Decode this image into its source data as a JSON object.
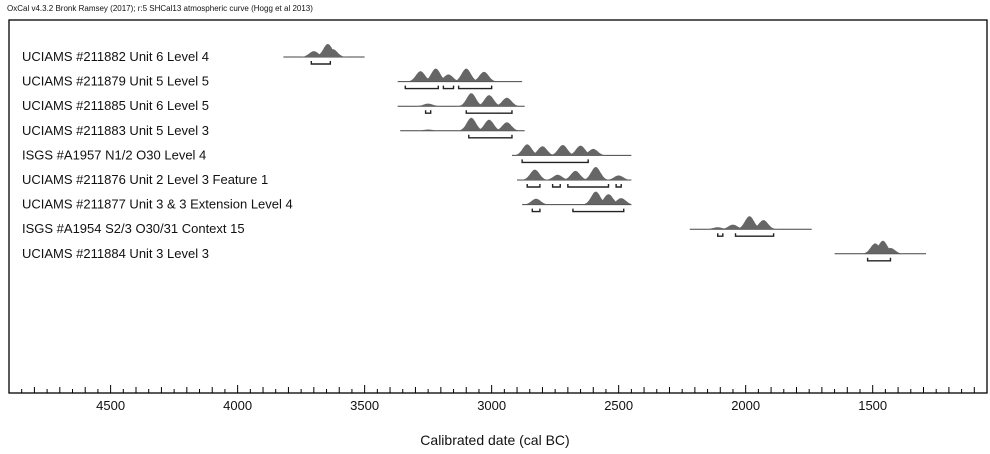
{
  "header": "OxCal v4.3.2 Bronk Ramsey (2017); r:5 SHCal13 atmospheric curve (Hogg et al 2013)",
  "chart_data": {
    "type": "range-plot",
    "xlabel": "Calibrated date (cal BC)",
    "xlim": [
      4900,
      1050
    ],
    "x_ticks": [
      4500,
      4000,
      3500,
      3000,
      2500,
      2000,
      1500
    ],
    "colors": {
      "distribution": "#666666",
      "range_line": "#444444",
      "frame": "#000000"
    },
    "samples": [
      {
        "label": "UCIAMS #211882 Unit 6 Level 4",
        "line": [
          3820,
          3500
        ],
        "peaks": [
          [
            3700,
            0.45
          ],
          [
            3645,
            1.0
          ],
          [
            3625,
            0.6
          ]
        ],
        "ranges": [
          [
            3710,
            3635
          ]
        ]
      },
      {
        "label": "UCIAMS #211879 Unit 5 Level 5",
        "line": [
          3370,
          2880
        ],
        "peaks": [
          [
            3280,
            0.8
          ],
          [
            3220,
            1.0
          ],
          [
            3170,
            0.55
          ],
          [
            3100,
            1.0
          ],
          [
            3030,
            0.75
          ]
        ],
        "ranges": [
          [
            3340,
            3210
          ],
          [
            3190,
            3150
          ],
          [
            3130,
            3000
          ]
        ]
      },
      {
        "label": "UCIAMS #211885 Unit 6 Level 5",
        "line": [
          3370,
          2870
        ],
        "peaks": [
          [
            3250,
            0.2
          ],
          [
            3080,
            1.0
          ],
          [
            3010,
            0.85
          ],
          [
            2940,
            0.65
          ]
        ],
        "ranges": [
          [
            3260,
            3240
          ],
          [
            3100,
            2920
          ]
        ]
      },
      {
        "label": "UCIAMS #211883 Unit 5 Level 3",
        "line": [
          3360,
          2870
        ],
        "peaks": [
          [
            3250,
            0.1
          ],
          [
            3080,
            1.0
          ],
          [
            3010,
            0.85
          ],
          [
            2940,
            0.65
          ]
        ],
        "ranges": [
          [
            3090,
            2920
          ]
        ]
      },
      {
        "label": "ISGS #A1957 N1/2 O30 Level 4",
        "line": [
          2920,
          2450
        ],
        "peaks": [
          [
            2860,
            0.85
          ],
          [
            2800,
            0.7
          ],
          [
            2720,
            0.8
          ],
          [
            2650,
            0.75
          ],
          [
            2600,
            0.5
          ]
        ],
        "ranges": [
          [
            2880,
            2620
          ]
        ]
      },
      {
        "label": "UCIAMS #211876 Unit 2 Level 3 Feature 1",
        "line": [
          2900,
          2450
        ],
        "peaks": [
          [
            2830,
            0.8
          ],
          [
            2740,
            0.4
          ],
          [
            2670,
            0.7
          ],
          [
            2590,
            1.0
          ],
          [
            2500,
            0.35
          ]
        ],
        "ranges": [
          [
            2860,
            2810
          ],
          [
            2760,
            2730
          ],
          [
            2700,
            2540
          ],
          [
            2510,
            2490
          ]
        ]
      },
      {
        "label": "UCIAMS #211877 Unit 3 & 3 Extension Level 4",
        "line": [
          2880,
          2450
        ],
        "peaks": [
          [
            2825,
            0.45
          ],
          [
            2590,
            1.0
          ],
          [
            2540,
            0.8
          ],
          [
            2490,
            0.5
          ]
        ],
        "ranges": [
          [
            2840,
            2810
          ],
          [
            2680,
            2480
          ]
        ]
      },
      {
        "label": "ISGS #A1954 S2/3 O30/31 Context 15",
        "line": [
          2220,
          1740
        ],
        "peaks": [
          [
            2110,
            0.15
          ],
          [
            2050,
            0.35
          ],
          [
            1985,
            1.0
          ],
          [
            1930,
            0.7
          ]
        ],
        "ranges": [
          [
            2110,
            2090
          ],
          [
            2040,
            1890
          ]
        ]
      },
      {
        "label": "UCIAMS #211884 Unit 3 Level 3",
        "line": [
          1650,
          1290
        ],
        "peaks": [
          [
            1490,
            0.8
          ],
          [
            1460,
            1.0
          ],
          [
            1430,
            0.45
          ]
        ],
        "ranges": [
          [
            1520,
            1430
          ]
        ]
      }
    ]
  }
}
